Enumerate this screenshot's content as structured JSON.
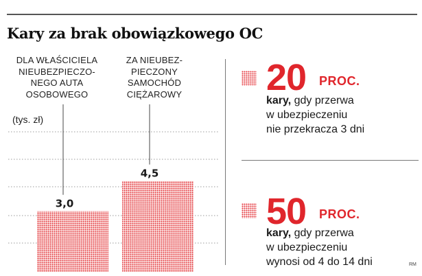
{
  "title": "Kary za brak obowiązkowego OC",
  "chart_data": {
    "type": "bar",
    "unit_label": "(tys. zł)",
    "categories": [
      "DLA WŁAŚCICIELA\nNIEUBEZPIECZO-\nNEGO AUTA\nOSOBOWEGO",
      "ZA NIEUBEZ-\nPIECZONY\nSAMOCHÓD\nCIĘŻAROWY"
    ],
    "values": [
      3.0,
      4.5
    ],
    "value_labels": [
      "3,0",
      "4,5"
    ],
    "ylim": [
      0,
      7
    ],
    "bar_color": "#e43a3f"
  },
  "stats": [
    {
      "number": "20",
      "unit": "PROC.",
      "bold": "kary,",
      "desc_line1": " gdy przerwa",
      "desc_line2": "w ubezpieczeniu",
      "desc_line3": "nie przekracza 3 dni"
    },
    {
      "number": "50",
      "unit": "PROC.",
      "bold": "kary,",
      "desc_line1": " gdy przerwa",
      "desc_line2": "w ubezpieczeniu",
      "desc_line3": "wynosi od 4 do 14 dni"
    }
  ],
  "credit": "RM"
}
